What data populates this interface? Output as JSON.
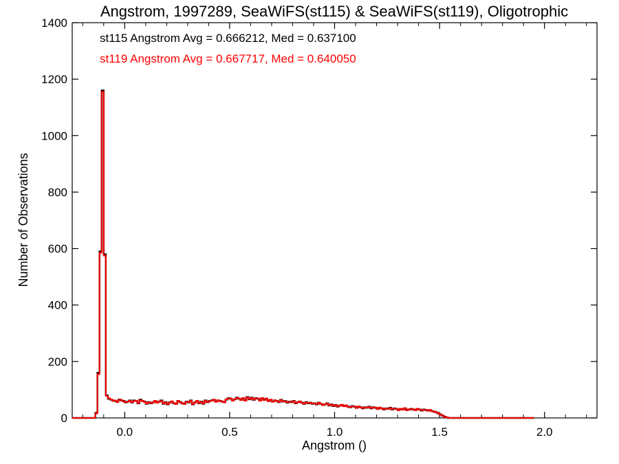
{
  "chart_data": {
    "type": "histogram-step",
    "title": "Angstrom, 1997289, SeaWiFS(st115) & SeaWiFS(st119), Oligotrophic",
    "xlabel": "Angstrom ()",
    "ylabel": "Number of Observations",
    "xlim": [
      -0.25,
      2.25
    ],
    "ylim": [
      0,
      1400
    ],
    "x_ticks": [
      0.0,
      0.5,
      1.0,
      1.5,
      2.0
    ],
    "x_tick_labels": [
      "0.0",
      "0.5",
      "1.0",
      "1.5",
      "2.0"
    ],
    "y_ticks": [
      0,
      200,
      400,
      600,
      800,
      1000,
      1200,
      1400
    ],
    "y_tick_labels": [
      "0",
      "200",
      "400",
      "600",
      "800",
      "1000",
      "1200",
      "1400"
    ],
    "grid": false,
    "legend": [
      {
        "text": "st115 Angstrom Avg = 0.666212, Med = 0.637100",
        "color": "#000000"
      },
      {
        "text": "st119 Angstrom Avg = 0.667717, Med = 0.640050",
        "color": "#ff0000"
      }
    ],
    "bin_start": -0.25,
    "bin_width": 0.01,
    "series": [
      {
        "name": "st115",
        "color": "#000000",
        "values": [
          0,
          0,
          0,
          0,
          0,
          0,
          0,
          0,
          0,
          0,
          0,
          18,
          160,
          590,
          1160,
          580,
          80,
          68,
          65,
          62,
          60,
          58,
          65,
          62,
          60,
          55,
          58,
          62,
          55,
          62,
          60,
          52,
          65,
          60,
          58,
          50,
          56,
          52,
          55,
          60,
          55,
          58,
          62,
          50,
          56,
          48,
          55,
          58,
          52,
          50,
          60,
          56,
          52,
          50,
          58,
          55,
          62,
          48,
          55,
          60,
          52,
          58,
          50,
          62,
          56,
          60,
          62,
          64,
          58,
          62,
          60,
          58,
          56,
          65,
          70,
          68,
          62,
          66,
          72,
          68,
          64,
          70,
          62,
          74,
          66,
          72,
          64,
          70,
          68,
          62,
          70,
          64,
          68,
          60,
          64,
          58,
          62,
          60,
          56,
          64,
          58,
          60,
          54,
          58,
          56,
          60,
          52,
          56,
          58,
          54,
          50,
          56,
          52,
          54,
          50,
          52,
          48,
          54,
          50,
          46,
          48,
          52,
          44,
          48,
          42,
          46,
          40,
          44,
          46,
          42,
          44,
          40,
          38,
          42,
          40,
          36,
          40,
          38,
          34,
          38,
          36,
          40,
          34,
          38,
          36,
          32,
          36,
          34,
          30,
          34,
          32,
          36,
          30,
          34,
          32,
          28,
          32,
          30,
          34,
          28,
          30,
          32,
          30,
          28,
          32,
          30,
          26,
          30,
          28,
          26,
          28,
          24,
          22,
          20,
          16,
          12,
          8,
          4,
          2,
          0,
          0,
          0,
          0,
          0,
          0,
          0,
          0,
          0,
          0,
          0,
          0,
          0,
          0,
          0,
          0,
          0,
          0,
          0,
          0,
          0,
          0,
          0,
          0,
          0,
          0,
          0,
          0,
          0,
          0,
          0,
          0,
          0,
          0,
          0,
          0,
          0,
          0,
          0,
          0,
          0
        ]
      },
      {
        "name": "st119",
        "color": "#ff0000",
        "values": [
          0,
          0,
          0,
          0,
          0,
          0,
          0,
          0,
          0,
          0,
          0,
          16,
          155,
          585,
          1155,
          575,
          78,
          70,
          66,
          60,
          62,
          56,
          64,
          63,
          58,
          56,
          57,
          61,
          56,
          60,
          61,
          53,
          63,
          61,
          57,
          51,
          55,
          53,
          54,
          61,
          54,
          59,
          60,
          51,
          55,
          49,
          54,
          59,
          53,
          49,
          61,
          55,
          53,
          49,
          57,
          56,
          61,
          49,
          54,
          61,
          53,
          57,
          51,
          61,
          57,
          59,
          61,
          65,
          57,
          63,
          59,
          59,
          55,
          66,
          69,
          69,
          61,
          67,
          71,
          69,
          63,
          71,
          61,
          73,
          67,
          71,
          65,
          69,
          69,
          61,
          71,
          63,
          69,
          59,
          65,
          57,
          63,
          59,
          57,
          63,
          59,
          59,
          55,
          57,
          57,
          59,
          53,
          55,
          59,
          53,
          51,
          55,
          53,
          53,
          51,
          51,
          49,
          53,
          51,
          45,
          49,
          51,
          45,
          47,
          43,
          45,
          41,
          43,
          47,
          41,
          45,
          39,
          39,
          41,
          41,
          35,
          41,
          37,
          35,
          37,
          37,
          39,
          35,
          37,
          37,
          31,
          37,
          33,
          31,
          33,
          33,
          35,
          31,
          33,
          33,
          27,
          33,
          29,
          35,
          27,
          31,
          31,
          31,
          27,
          33,
          29,
          27,
          29,
          29,
          25,
          29,
          23,
          23,
          19,
          17,
          11,
          9,
          3,
          2,
          0,
          0,
          0,
          0,
          0,
          0,
          0,
          0,
          0,
          0,
          0,
          0,
          0,
          0,
          0,
          0,
          0,
          0,
          0,
          0,
          0,
          0,
          0,
          0,
          0,
          0,
          0,
          0,
          0,
          0,
          0,
          0,
          0,
          0,
          0,
          0,
          0,
          0,
          0,
          0,
          0
        ]
      }
    ]
  }
}
